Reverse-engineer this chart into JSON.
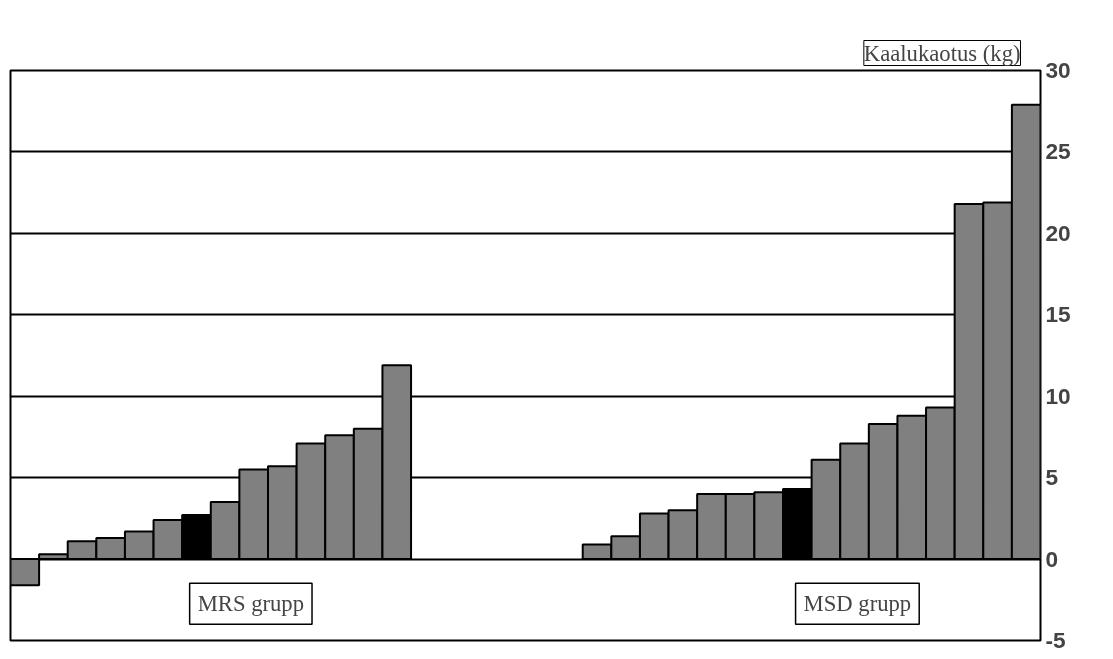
{
  "chart_data": {
    "type": "bar",
    "ylabel": "Kaalukaotus (kg)",
    "categories": [
      null,
      null,
      null,
      null,
      null,
      null,
      null,
      null,
      null,
      null,
      null,
      null,
      null,
      null,
      null,
      null,
      null,
      null,
      null,
      null,
      null,
      null,
      null,
      null,
      null,
      null,
      null,
      null,
      null,
      null,
      null,
      null,
      null,
      null,
      null,
      null
    ],
    "values": [
      -1.6,
      0.3,
      1.1,
      1.3,
      1.7,
      2.4,
      2.7,
      3.5,
      5.5,
      5.7,
      7.1,
      7.6,
      8.0,
      11.9,
      null,
      null,
      null,
      null,
      null,
      null,
      0.9,
      1.4,
      2.8,
      3.0,
      4.0,
      4.0,
      4.1,
      4.3,
      6.1,
      7.1,
      8.3,
      8.8,
      9.3,
      21.8,
      21.9,
      27.9
    ],
    "colors": [
      "#808080",
      "#808080",
      "#808080",
      "#808080",
      "#808080",
      "#808080",
      "#000000",
      "#808080",
      "#808080",
      "#808080",
      "#808080",
      "#808080",
      "#808080",
      "#808080",
      "#808080",
      "#808080",
      "#808080",
      "#808080",
      "#808080",
      "#808080",
      "#808080",
      "#808080",
      "#808080",
      "#808080",
      "#808080",
      "#808080",
      "#808080",
      "#000000",
      "#808080",
      "#808080",
      "#808080",
      "#808080",
      "#808080",
      "#808080",
      "#808080",
      "#808080"
    ],
    "annotations": [
      "MRS grupp",
      "MSD grupp"
    ],
    "ylim": [
      -5,
      30
    ],
    "yticks": [
      -5,
      0,
      5,
      10,
      15,
      20,
      25,
      30
    ],
    "grid": "y",
    "tick_labels": "y"
  }
}
